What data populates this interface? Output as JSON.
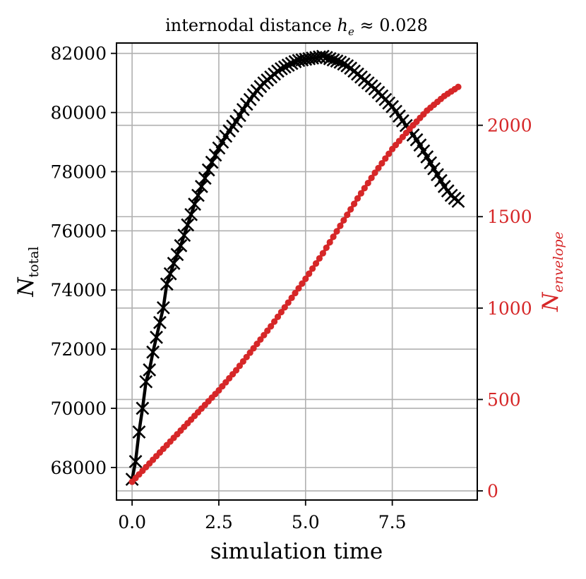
{
  "chart_data": {
    "type": "line",
    "title": "internodal distance h_e ≈ 0.028",
    "title_parts": {
      "prefix": "internodal distance ",
      "symbol": "h",
      "subscript": "e",
      "relation": " ≈ 0.028"
    },
    "xlabel": "simulation time",
    "ylabel_left": {
      "base": "N",
      "subscript": "total"
    },
    "ylabel_right": {
      "base": "N",
      "subscript": "envelope"
    },
    "xlim": [
      -0.45,
      9.95
    ],
    "ylim_left": [
      66900,
      82350
    ],
    "ylim_right": [
      -50,
      2450
    ],
    "xticks": [
      0.0,
      2.5,
      5.0,
      7.5
    ],
    "xtick_labels": [
      "0.0",
      "2.5",
      "5.0",
      "7.5"
    ],
    "yticks_left": [
      68000,
      70000,
      72000,
      74000,
      76000,
      78000,
      80000,
      82000
    ],
    "ytick_labels_left": [
      "68000",
      "70000",
      "72000",
      "74000",
      "76000",
      "78000",
      "80000",
      "82000"
    ],
    "yticks_right": [
      0,
      500,
      1000,
      1500,
      2000
    ],
    "ytick_labels_right": [
      "0",
      "500",
      "1000",
      "1500",
      "2000"
    ],
    "grid": true,
    "colors": {
      "left_series": "#000000",
      "right_series": "#d62728",
      "grid": "#b0b0b0"
    },
    "series": [
      {
        "name": "N_total",
        "axis": "left",
        "marker": "x",
        "color": "#000000",
        "x_start": 0.0,
        "x_end": 9.4,
        "n_points": 95,
        "points": [
          [
            0.0,
            67600
          ],
          [
            0.1,
            68200
          ],
          [
            0.2,
            69200
          ],
          [
            0.3,
            70000
          ],
          [
            0.4,
            70900
          ],
          [
            0.5,
            71300
          ],
          [
            0.6,
            71900
          ],
          [
            0.7,
            72400
          ],
          [
            0.8,
            72900
          ],
          [
            0.9,
            73400
          ],
          [
            1.0,
            74200
          ],
          [
            1.2,
            74900
          ],
          [
            1.4,
            75500
          ],
          [
            1.6,
            76200
          ],
          [
            1.8,
            76900
          ],
          [
            2.0,
            77500
          ],
          [
            2.25,
            78200
          ],
          [
            2.5,
            78800
          ],
          [
            2.75,
            79300
          ],
          [
            3.0,
            79700
          ],
          [
            3.25,
            80200
          ],
          [
            3.5,
            80600
          ],
          [
            3.75,
            80950
          ],
          [
            4.0,
            81200
          ],
          [
            4.25,
            81450
          ],
          [
            4.5,
            81600
          ],
          [
            4.75,
            81750
          ],
          [
            5.0,
            81800
          ],
          [
            5.25,
            81850
          ],
          [
            5.5,
            81900
          ],
          [
            5.75,
            81800
          ],
          [
            6.0,
            81700
          ],
          [
            6.25,
            81550
          ],
          [
            6.5,
            81300
          ],
          [
            6.75,
            81050
          ],
          [
            7.0,
            80800
          ],
          [
            7.25,
            80500
          ],
          [
            7.5,
            80200
          ],
          [
            7.75,
            79800
          ],
          [
            8.0,
            79400
          ],
          [
            8.25,
            79000
          ],
          [
            8.5,
            78500
          ],
          [
            8.75,
            78000
          ],
          [
            9.0,
            77500
          ],
          [
            9.2,
            77200
          ],
          [
            9.4,
            77000
          ]
        ]
      },
      {
        "name": "N_envelope",
        "axis": "right",
        "marker": "o",
        "color": "#d62728",
        "x_start": 0.0,
        "x_end": 9.4,
        "n_points": 95,
        "points": [
          [
            0.0,
            50
          ],
          [
            0.25,
            100
          ],
          [
            0.5,
            150
          ],
          [
            1.0,
            250
          ],
          [
            1.5,
            350
          ],
          [
            2.0,
            450
          ],
          [
            2.5,
            550
          ],
          [
            3.0,
            660
          ],
          [
            3.5,
            780
          ],
          [
            4.0,
            900
          ],
          [
            4.5,
            1030
          ],
          [
            5.0,
            1160
          ],
          [
            5.5,
            1300
          ],
          [
            6.0,
            1450
          ],
          [
            6.5,
            1600
          ],
          [
            7.0,
            1740
          ],
          [
            7.5,
            1870
          ],
          [
            8.0,
            1980
          ],
          [
            8.5,
            2080
          ],
          [
            9.0,
            2160
          ],
          [
            9.4,
            2210
          ]
        ]
      }
    ]
  }
}
